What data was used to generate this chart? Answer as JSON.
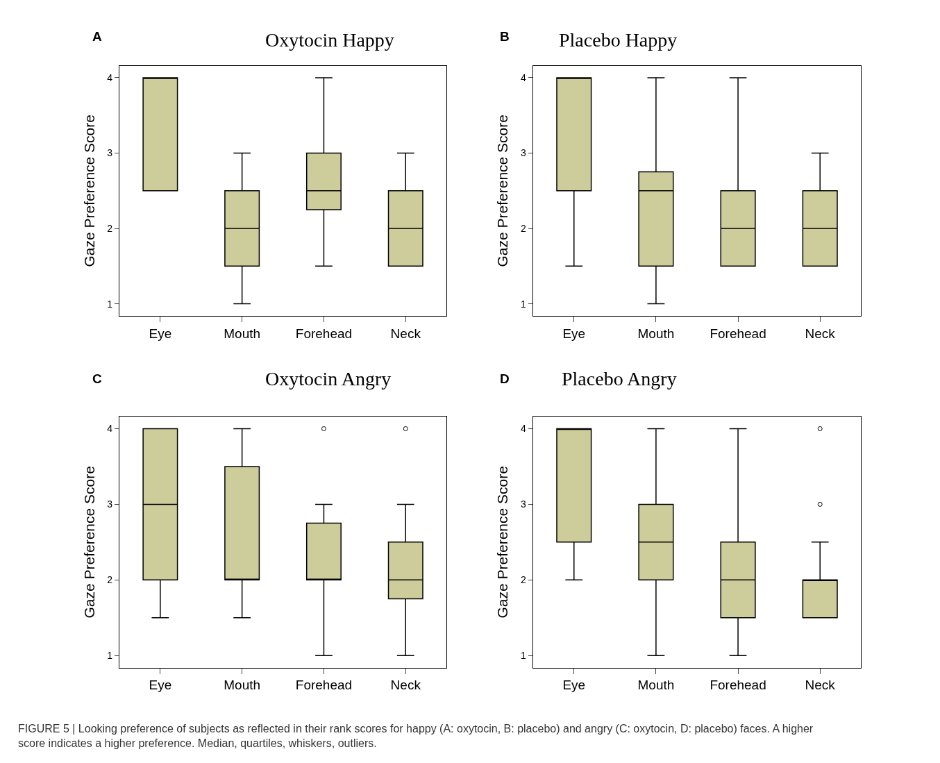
{
  "chart_data": [
    {
      "type": "box",
      "title": "Oxytocin Happy",
      "ylabel": "Gaze Preference Score",
      "categories": [
        "Eye",
        "Mouth",
        "Forehead",
        "Neck"
      ],
      "color": "#cdcc9b",
      "ylim": [
        0.84,
        4.16
      ],
      "yticks": [
        1,
        2,
        3,
        4
      ],
      "annotations": [
        "A"
      ],
      "boxes": [
        {
          "low": 2.5,
          "q1": 2.5,
          "median": 4,
          "q3": 4,
          "high": 4
        },
        {
          "low": 1,
          "q1": 1.5,
          "median": 2,
          "q3": 2.5,
          "high": 3
        },
        {
          "low": 1.5,
          "q1": 2.25,
          "median": 2.5,
          "q3": 3,
          "high": 4
        },
        {
          "low": 1.5,
          "q1": 1.5,
          "median": 2,
          "q3": 2.5,
          "high": 3
        }
      ]
    },
    {
      "type": "box",
      "title": "Placebo Happy",
      "ylabel": "Gaze Preference Score",
      "categories": [
        "Eye",
        "Mouth",
        "Forehead",
        "Neck"
      ],
      "color": "#cdcc9b",
      "ylim": [
        0.84,
        4.16
      ],
      "yticks": [
        1,
        2,
        3,
        4
      ],
      "annotations": [
        "B"
      ],
      "boxes": [
        {
          "low": 1.5,
          "q1": 2.5,
          "median": 4,
          "q3": 4,
          "high": 4
        },
        {
          "low": 1,
          "q1": 1.5,
          "median": 2.5,
          "q3": 2.75,
          "high": 4
        },
        {
          "low": 1.5,
          "q1": 1.5,
          "median": 2,
          "q3": 2.5,
          "high": 4
        },
        {
          "low": 1.5,
          "q1": 1.5,
          "median": 2,
          "q3": 2.5,
          "high": 3
        }
      ]
    },
    {
      "type": "box",
      "title": "Oxytocin Angry",
      "ylabel": "Gaze Preference Score",
      "categories": [
        "Eye",
        "Mouth",
        "Forehead",
        "Neck"
      ],
      "color": "#cdcc9b",
      "ylim": [
        0.84,
        4.16
      ],
      "yticks": [
        1,
        2,
        3,
        4
      ],
      "annotations": [
        "C"
      ],
      "boxes": [
        {
          "low": 1.5,
          "q1": 2,
          "median": 3,
          "q3": 4,
          "high": 4
        },
        {
          "low": 1.5,
          "q1": 2,
          "median": 2,
          "q3": 3.5,
          "high": 4
        },
        {
          "low": 1,
          "q1": 2,
          "median": 2,
          "q3": 2.75,
          "high": 3,
          "outliers": [
            4
          ]
        },
        {
          "low": 1,
          "q1": 1.75,
          "median": 2,
          "q3": 2.5,
          "high": 3,
          "outliers": [
            4
          ]
        }
      ]
    },
    {
      "type": "box",
      "title": "Placebo Angry",
      "ylabel": "Gaze Preference Score",
      "categories": [
        "Eye",
        "Mouth",
        "Forehead",
        "Neck"
      ],
      "color": "#cdcc9b",
      "ylim": [
        0.84,
        4.16
      ],
      "yticks": [
        1,
        2,
        3,
        4
      ],
      "annotations": [
        "D",
        "FIGURE 5 | Looking preference of subjects as reflected in their rank scores for happy (A: oxytocin, B: placebo) and angry (C: oxytocin, D: placebo) faces. A higher score indicates a higher preference. Median, quartiles, whiskers, outliers."
      ],
      "boxes": [
        {
          "low": 2,
          "q1": 2.5,
          "median": 4,
          "q3": 4,
          "high": 4
        },
        {
          "low": 1,
          "q1": 2,
          "median": 2.5,
          "q3": 3,
          "high": 4
        },
        {
          "low": 1,
          "q1": 1.5,
          "median": 2,
          "q3": 2.5,
          "high": 4
        },
        {
          "low": 1.5,
          "q1": 1.5,
          "median": 2,
          "q3": 2,
          "high": 2.5,
          "outliers": [
            3,
            4
          ]
        }
      ]
    }
  ]
}
